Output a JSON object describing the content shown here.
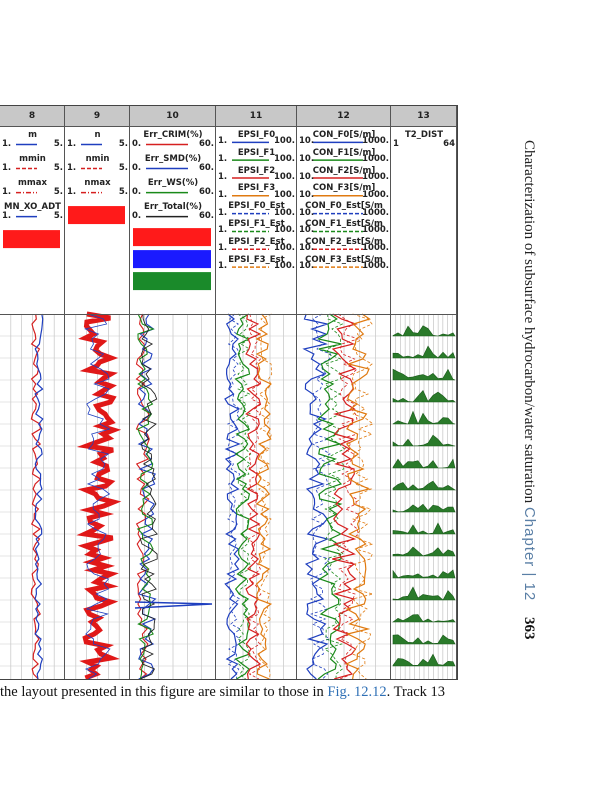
{
  "side_header": {
    "title": "Characterization of subsurface hydrocarbon/water saturation",
    "chapter": "Chapter | 12",
    "page_number": "363"
  },
  "caption": {
    "text_before": "the layout presented in this figure are similar to those in ",
    "ref": "Fig. 12.12",
    "text_after": ". Track 13"
  },
  "tracks": [
    {
      "num": "8",
      "curves": [
        {
          "name": "m",
          "min": "1.",
          "max": "5.",
          "style": "solid",
          "color": "#1f3fbf"
        },
        {
          "name": "mmin",
          "min": "1.",
          "max": "5.",
          "style": "dashed",
          "color": "#d62020"
        },
        {
          "name": "mmax",
          "min": "1.",
          "max": "5.",
          "style": "dashdot",
          "color": "#d62020"
        },
        {
          "name": "MN_XO_ADT",
          "min": "1.",
          "max": "5.",
          "style": "solid",
          "color": "#1f3fbf"
        }
      ],
      "swatches": [
        "#ff1a1a"
      ]
    },
    {
      "num": "9",
      "curves": [
        {
          "name": "n",
          "min": "1.",
          "max": "5.",
          "style": "solid",
          "color": "#1f3fbf"
        },
        {
          "name": "nmin",
          "min": "1.",
          "max": "5.",
          "style": "dashed",
          "color": "#d62020"
        },
        {
          "name": "nmax",
          "min": "1.",
          "max": "5.",
          "style": "dashdot",
          "color": "#d62020"
        }
      ],
      "swatches": [
        "#ff1a1a"
      ]
    },
    {
      "num": "10",
      "curves": [
        {
          "name": "Err_CRIM(%)",
          "min": "0.",
          "max": "60.",
          "style": "solid",
          "color": "#d62020"
        },
        {
          "name": "Err_SMD(%)",
          "min": "0.",
          "max": "60.",
          "style": "solid",
          "color": "#1f3fbf"
        },
        {
          "name": "Err_WS(%)",
          "min": "0.",
          "max": "60.",
          "style": "solid",
          "color": "#1a8a1a"
        },
        {
          "name": "Err_Total(%)",
          "min": "0.",
          "max": "60.",
          "style": "solid",
          "color": "#222222"
        }
      ],
      "swatches": [
        "#ff1a1a",
        "#1a1aff",
        "#1a8a2a"
      ]
    },
    {
      "num": "11",
      "curves": [
        {
          "name": "EPSI_F0",
          "min": "1.",
          "max": "100.",
          "style": "solid",
          "color": "#1f3fbf"
        },
        {
          "name": "EPSI_F1",
          "min": "1.",
          "max": "100.",
          "style": "solid",
          "color": "#1a8a1a"
        },
        {
          "name": "EPSI_F2",
          "min": "1.",
          "max": "100.",
          "style": "solid",
          "color": "#d62020"
        },
        {
          "name": "EPSI_F3",
          "min": "1.",
          "max": "100.",
          "style": "solid",
          "color": "#e07a10"
        },
        {
          "name": "EPSI_F0_Est",
          "min": "1.",
          "max": "100.",
          "style": "dashed",
          "color": "#1f3fbf"
        },
        {
          "name": "EPSI_F1_Est",
          "min": "1.",
          "max": "100.",
          "style": "dashed",
          "color": "#1a8a1a"
        },
        {
          "name": "EPSI_F2_Est",
          "min": "1.",
          "max": "100.",
          "style": "dashed",
          "color": "#d62020"
        },
        {
          "name": "EPSI_F3_Est",
          "min": "1.",
          "max": "100.",
          "style": "dashed",
          "color": "#e07a10"
        }
      ]
    },
    {
      "num": "12",
      "curves": [
        {
          "name": "CON_F0[S/m]",
          "min": "10.",
          "max": "1000.",
          "style": "solid",
          "color": "#1f3fbf"
        },
        {
          "name": "CON_F1[S/m]",
          "min": "10.",
          "max": "1000.",
          "style": "solid",
          "color": "#1a8a1a"
        },
        {
          "name": "CON_F2[S/m]",
          "min": "10.",
          "max": "1000.",
          "style": "solid",
          "color": "#d62020"
        },
        {
          "name": "CON_F3[S/m]",
          "min": "10.",
          "max": "1000.",
          "style": "solid",
          "color": "#e07a10"
        },
        {
          "name": "CON_F0_Est[S/m",
          "min": "10.",
          "max": "1000.",
          "style": "dashed",
          "color": "#1f3fbf"
        },
        {
          "name": "CON_F1_Est[S/m",
          "min": "10.",
          "max": "1000.",
          "style": "dashed",
          "color": "#1a8a1a"
        },
        {
          "name": "CON_F2_Est[S/m",
          "min": "10.",
          "max": "1000.",
          "style": "dashed",
          "color": "#d62020"
        },
        {
          "name": "CON_F3_Est[S/m",
          "min": "10.",
          "max": "1000.",
          "style": "dashed",
          "color": "#e07a10"
        }
      ]
    },
    {
      "num": "13",
      "curves": [
        {
          "name": "T2_DIST",
          "min": "1",
          "max": "64",
          "style": "wave",
          "color": "#1a6a1a"
        }
      ]
    }
  ]
}
